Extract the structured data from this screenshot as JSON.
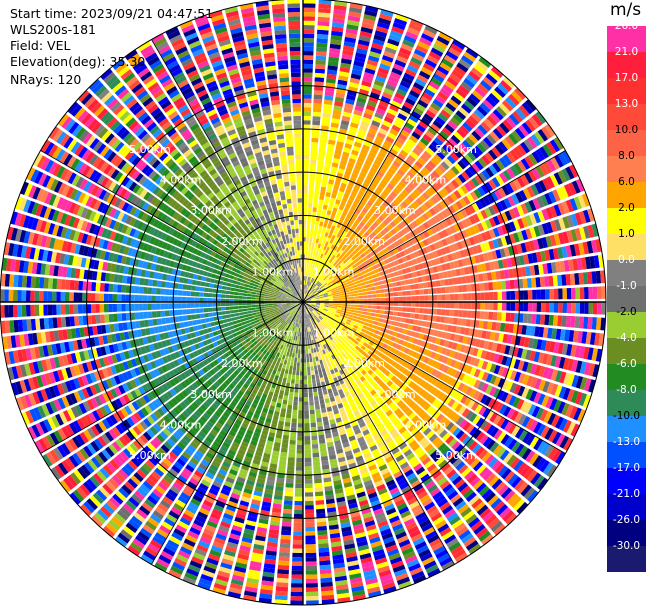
{
  "info": {
    "start_time": "Start time: 2023/09/21 04:47:51",
    "site": "WLS200s-181",
    "field": "Field: VEL",
    "elevation": "Elevation(deg): 35.30",
    "nrays": "NRays: 120"
  },
  "chart_data": {
    "type": "heatmap",
    "projection": "polar PPI",
    "title": "",
    "field": "VEL",
    "units": "m/s",
    "range_ring_labels": [
      "1.00km",
      "2.00km",
      "3.00km",
      "4.00km",
      "5.00km"
    ],
    "range_rings_km": [
      1,
      2,
      3,
      4,
      5
    ],
    "max_range_km": 7,
    "nrays": 120,
    "grid": true,
    "colorbar": {
      "label": "m/s",
      "ticks": [
        "26.0",
        "21.0",
        "17.0",
        "13.0",
        "10.0",
        "8.0",
        "6.0",
        "2.0",
        "1.0",
        "0.0",
        "-1.0",
        "-2.0",
        "-4.0",
        "-6.0",
        "-8.0",
        "-10.0",
        "-13.0",
        "-17.0",
        "-21.0",
        "-26.0",
        "-30.0"
      ],
      "colors": [
        "#ff2fa5",
        "#ff1e3c",
        "#ff3030",
        "#ff4a3a",
        "#ff6347",
        "#ff7f50",
        "#ffa500",
        "#ffff00",
        "#ffe066",
        "#808080",
        "#6e7070",
        "#9acd32",
        "#6b8e23",
        "#228b22",
        "#2e8b57",
        "#1e90ff",
        "#0050ff",
        "#0000ff",
        "#0000cd",
        "#000080",
        "#1a1a6e"
      ]
    },
    "velocity_by_azimuth": {
      "azimuth_deg": [
        0,
        30,
        60,
        90,
        120,
        150,
        180,
        210,
        240,
        270,
        300,
        330
      ],
      "velocity_ms": [
        2.0,
        6.0,
        8.0,
        10.0,
        6.0,
        2.0,
        -2.0,
        -6.0,
        -8.0,
        -10.0,
        -6.0,
        -2.0
      ]
    }
  }
}
